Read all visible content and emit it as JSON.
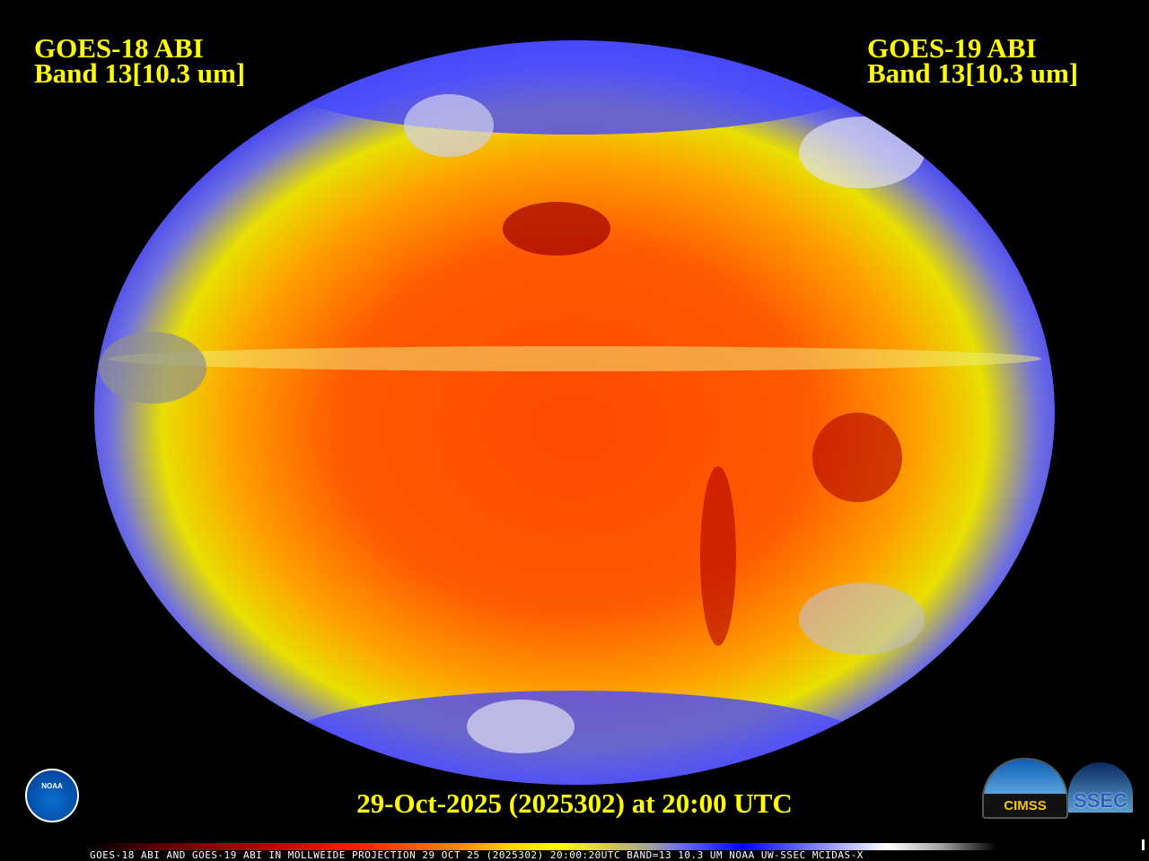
{
  "header": {
    "left": {
      "line1": "GOES-18 ABI",
      "line2": "Band 13[10.3 um]"
    },
    "right": {
      "line1": "GOES-19 ABI",
      "line2": "Band 13[10.3 um]"
    }
  },
  "timestamp": "29-Oct-2025 (2025302) at 20:00 UTC",
  "caption": "GOES-18 ABI AND GOES-19 ABI IN MOLLWEIDE PROJECTION 29 OCT 25 (2025302) 20:00:20UTC BAND=13 10.3 UM NOAA UW-SSEC MCIDAS-X",
  "logos": {
    "noaa": "NOAA",
    "cimss": "CIMSS",
    "ssec": "SSEC"
  },
  "map": {
    "projection": "Mollweide",
    "colors": {
      "warm": "#ff3000",
      "hot": "#a00000",
      "mid": "#ffff00",
      "cold": "#0000ff",
      "coldest": "#ffffff"
    }
  }
}
